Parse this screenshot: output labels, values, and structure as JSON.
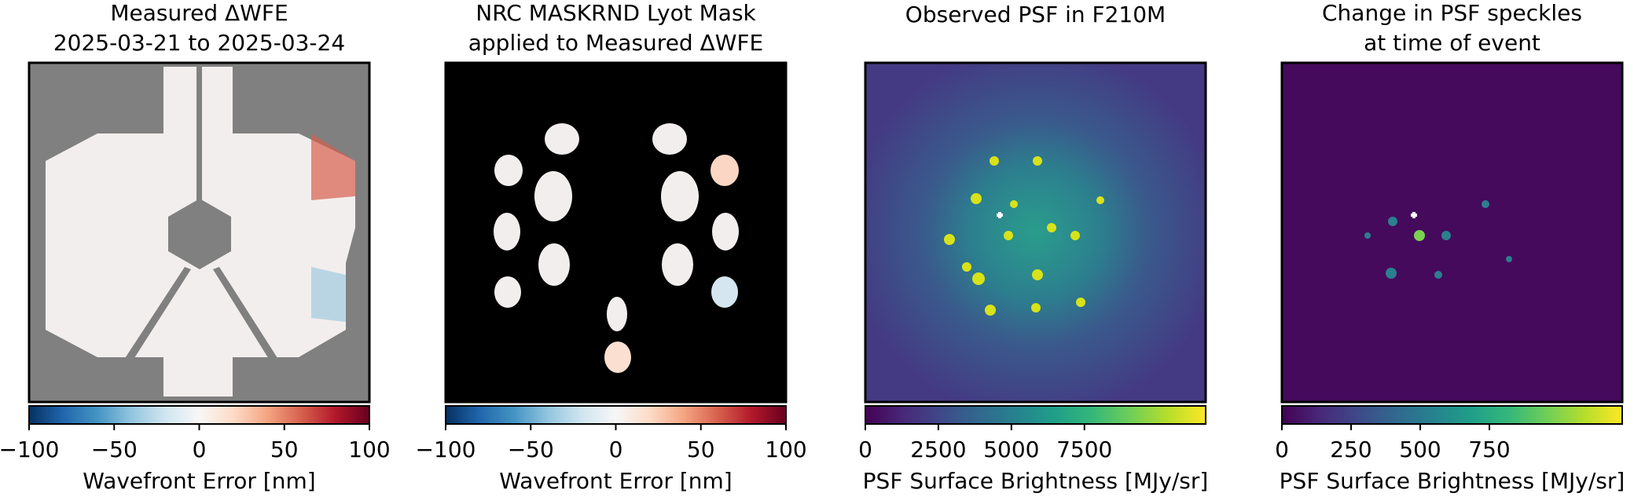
{
  "chart_data": [
    {
      "type": "image",
      "title": [
        "Measured ΔWFE",
        "2025-03-21 to 2025-03-24"
      ],
      "colormap": "RdBu_r",
      "colorbar_label": "Wavefront Error [nm]",
      "xlim": [
        -100,
        100
      ],
      "xticks": [
        {
          "value": -100,
          "label": "−100"
        },
        {
          "value": -50,
          "label": "−50"
        },
        0,
        50,
        100
      ]
    },
    {
      "type": "image",
      "title": [
        "NRC MASKRND Lyot Mask",
        "applied to Measured ΔWFE"
      ],
      "colormap": "RdBu_r",
      "colorbar_label": "Wavefront Error [nm]",
      "xlim": [
        -100,
        100
      ],
      "xticks": [
        {
          "value": -100,
          "label": "−100"
        },
        {
          "value": -50,
          "label": "−50"
        },
        0,
        50,
        100
      ]
    },
    {
      "type": "image",
      "title": [
        "Observed PSF in F210M"
      ],
      "colormap": "viridis",
      "colorbar_label": "PSF Surface Brightness [MJy/sr]",
      "xlim": [
        0,
        11650
      ],
      "xticks": [
        0,
        2500,
        5000,
        7500
      ]
    },
    {
      "type": "image",
      "title": [
        "Change in PSF speckles",
        "at time of event"
      ],
      "colormap": "viridis",
      "colorbar_label": "PSF Surface Brightness [MJy/sr]",
      "xlim": [
        0,
        1230
      ],
      "xticks": [
        0,
        250,
        500,
        750
      ]
    }
  ]
}
